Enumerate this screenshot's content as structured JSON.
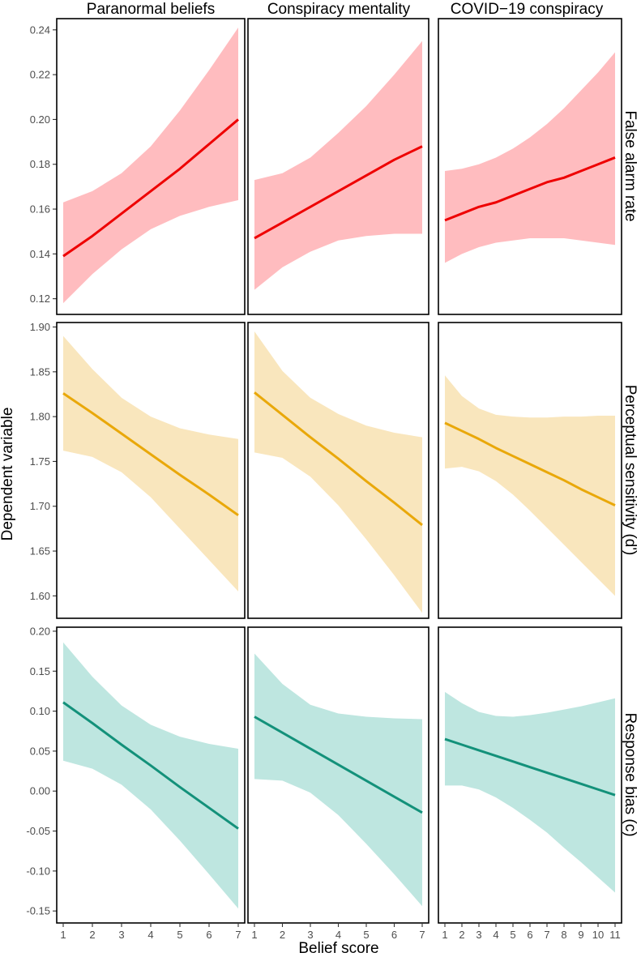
{
  "figure": {
    "x_title": "Belief score",
    "y_title": "Dependent variable",
    "col_titles": [
      "Paranormal beliefs",
      "Conspiracy mentality",
      "COVID−19 conspiracy"
    ],
    "row_titles": [
      "False alarm rate",
      "Perceptual sensitivity (d')",
      "Response bias (c)"
    ]
  },
  "chart_data": {
    "type": "line",
    "description_kind": "faceted regression lines with confidence bands",
    "columns": [
      {
        "title": "Paranormal beliefs",
        "xlim": [
          1,
          7
        ],
        "x_ticks": [
          1,
          2,
          3,
          4,
          5,
          6,
          7
        ]
      },
      {
        "title": "Conspiracy mentality",
        "xlim": [
          1,
          7
        ],
        "x_ticks": [
          1,
          2,
          3,
          4,
          5,
          6,
          7
        ]
      },
      {
        "title": "COVID−19 conspiracy",
        "xlim": [
          1,
          11
        ],
        "x_ticks": [
          1,
          2,
          3,
          4,
          5,
          6,
          7,
          8,
          9,
          10,
          11
        ]
      }
    ],
    "rows": [
      {
        "title": "False alarm rate",
        "ylim": [
          0.113,
          0.245
        ],
        "y_ticks": [
          0.12,
          0.14,
          0.16,
          0.18,
          0.2,
          0.22,
          0.24
        ],
        "y_tick_labels": [
          "0.12",
          "0.14",
          "0.16",
          "0.18",
          "0.20",
          "0.22",
          "0.24"
        ],
        "line_color": "#ee0000",
        "band_color": "#ffbcbf",
        "panels": [
          {
            "x": [
              1,
              2,
              3,
              4,
              5,
              6,
              7
            ],
            "fit": [
              0.139,
              0.148,
              0.158,
              0.168,
              0.178,
              0.189,
              0.2
            ],
            "lower": [
              0.118,
              0.131,
              0.142,
              0.151,
              0.157,
              0.161,
              0.164
            ],
            "upper": [
              0.163,
              0.168,
              0.176,
              0.188,
              0.204,
              0.222,
              0.241
            ]
          },
          {
            "x": [
              1,
              2,
              3,
              4,
              5,
              6,
              7
            ],
            "fit": [
              0.147,
              0.154,
              0.161,
              0.168,
              0.175,
              0.182,
              0.188
            ],
            "lower": [
              0.124,
              0.134,
              0.141,
              0.146,
              0.148,
              0.149,
              0.149
            ],
            "upper": [
              0.173,
              0.176,
              0.183,
              0.194,
              0.206,
              0.22,
              0.235
            ]
          },
          {
            "x": [
              1,
              2,
              3,
              4,
              5,
              6,
              7,
              8,
              9,
              10,
              11
            ],
            "fit": [
              0.155,
              0.158,
              0.161,
              0.163,
              0.166,
              0.169,
              0.172,
              0.174,
              0.177,
              0.18,
              0.183
            ],
            "lower": [
              0.136,
              0.14,
              0.143,
              0.145,
              0.146,
              0.147,
              0.147,
              0.147,
              0.146,
              0.145,
              0.144
            ],
            "upper": [
              0.177,
              0.178,
              0.18,
              0.183,
              0.187,
              0.192,
              0.198,
              0.205,
              0.213,
              0.221,
              0.23
            ]
          }
        ]
      },
      {
        "title": "Perceptual sensitivity (d')",
        "ylim": [
          1.575,
          1.905
        ],
        "y_ticks": [
          1.6,
          1.65,
          1.7,
          1.75,
          1.8,
          1.85,
          1.9
        ],
        "y_tick_labels": [
          "1.60",
          "1.65",
          "1.70",
          "1.75",
          "1.80",
          "1.85",
          "1.90"
        ],
        "line_color": "#e9a80a",
        "band_color": "#f9e6bd",
        "panels": [
          {
            "x": [
              1,
              2,
              3,
              4,
              5,
              6,
              7
            ],
            "fit": [
              1.826,
              1.804,
              1.781,
              1.758,
              1.735,
              1.713,
              1.69
            ],
            "lower": [
              1.762,
              1.755,
              1.738,
              1.71,
              1.675,
              1.64,
              1.605
            ],
            "upper": [
              1.89,
              1.853,
              1.821,
              1.8,
              1.787,
              1.78,
              1.775
            ]
          },
          {
            "x": [
              1,
              2,
              3,
              4,
              5,
              6,
              7
            ],
            "fit": [
              1.827,
              1.802,
              1.777,
              1.753,
              1.728,
              1.704,
              1.679
            ],
            "lower": [
              1.76,
              1.754,
              1.733,
              1.701,
              1.663,
              1.623,
              1.581
            ],
            "upper": [
              1.895,
              1.851,
              1.821,
              1.803,
              1.79,
              1.782,
              1.777
            ]
          },
          {
            "x": [
              1,
              2,
              3,
              4,
              5,
              6,
              7,
              8,
              9,
              10,
              11
            ],
            "fit": [
              1.793,
              1.784,
              1.775,
              1.765,
              1.756,
              1.747,
              1.738,
              1.729,
              1.719,
              1.71,
              1.701
            ],
            "lower": [
              1.742,
              1.744,
              1.739,
              1.728,
              1.713,
              1.695,
              1.676,
              1.657,
              1.638,
              1.619,
              1.6
            ],
            "upper": [
              1.846,
              1.823,
              1.809,
              1.802,
              1.8,
              1.799,
              1.799,
              1.8,
              1.8,
              1.801,
              1.801
            ]
          }
        ]
      },
      {
        "title": "Response bias (c)",
        "ylim": [
          -0.165,
          0.205
        ],
        "y_ticks": [
          -0.15,
          -0.1,
          -0.05,
          0.0,
          0.05,
          0.1,
          0.15,
          0.2
        ],
        "y_tick_labels": [
          "-0.15",
          "-0.10",
          "-0.05",
          "0.00",
          "0.05",
          "0.10",
          "0.15",
          "0.20"
        ],
        "line_color": "#13917a",
        "band_color": "#bee6e0",
        "panels": [
          {
            "x": [
              1,
              2,
              3,
              4,
              5,
              6,
              7
            ],
            "fit": [
              0.111,
              0.085,
              0.058,
              0.032,
              0.005,
              -0.021,
              -0.047
            ],
            "lower": [
              0.038,
              0.028,
              0.008,
              -0.023,
              -0.062,
              -0.104,
              -0.147
            ],
            "upper": [
              0.186,
              0.143,
              0.107,
              0.083,
              0.068,
              0.059,
              0.053
            ]
          },
          {
            "x": [
              1,
              2,
              3,
              4,
              5,
              6,
              7
            ],
            "fit": [
              0.093,
              0.073,
              0.053,
              0.033,
              0.013,
              -0.007,
              -0.027
            ],
            "lower": [
              0.015,
              0.013,
              -0.002,
              -0.03,
              -0.066,
              -0.104,
              -0.144
            ],
            "upper": [
              0.172,
              0.134,
              0.108,
              0.097,
              0.093,
              0.091,
              0.09
            ]
          },
          {
            "x": [
              1,
              2,
              3,
              4,
              5,
              6,
              7,
              8,
              9,
              10,
              11
            ],
            "fit": [
              0.065,
              0.058,
              0.051,
              0.044,
              0.037,
              0.03,
              0.023,
              0.016,
              0.009,
              0.002,
              -0.005
            ],
            "lower": [
              0.007,
              0.007,
              0.002,
              -0.008,
              -0.021,
              -0.036,
              -0.052,
              -0.071,
              -0.089,
              -0.108,
              -0.127
            ],
            "upper": [
              0.124,
              0.11,
              0.099,
              0.094,
              0.093,
              0.095,
              0.098,
              0.102,
              0.106,
              0.111,
              0.116
            ]
          }
        ]
      }
    ]
  }
}
